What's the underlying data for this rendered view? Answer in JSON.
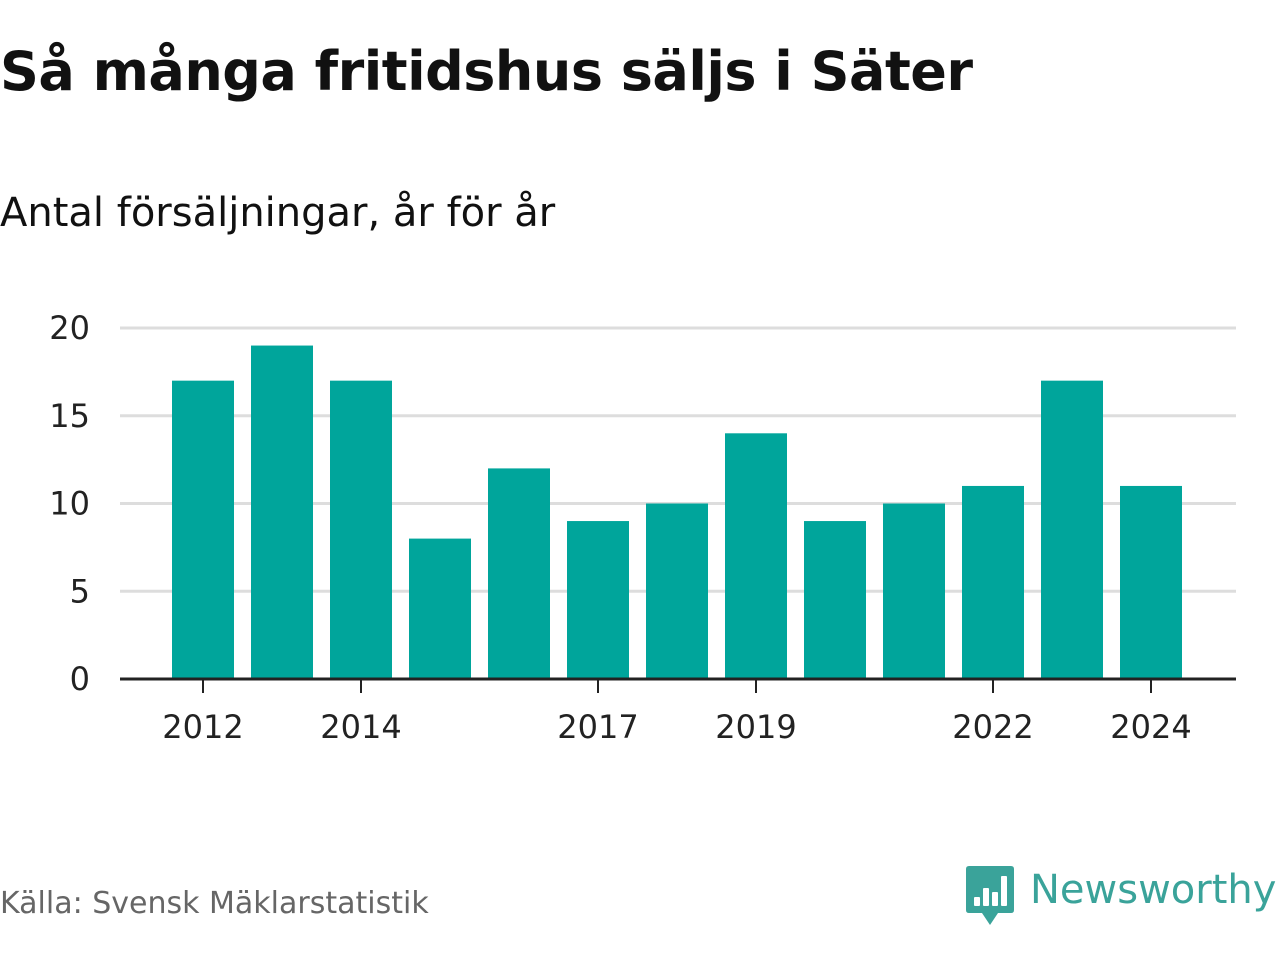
{
  "title": "Så många fritidshus säljs i Säter",
  "subtitle": "Antal försäljningar, år för år",
  "source": "Källa: Svensk Mäklarstatistik",
  "brand": {
    "name": "Newsworthy",
    "icon": "newsworthy-logo-icon",
    "color": "#3aa39a"
  },
  "chart_data": {
    "type": "bar",
    "title": "Så många fritidshus säljs i Säter",
    "subtitle": "Antal försäljningar, år för år",
    "xlabel": "",
    "ylabel": "",
    "categories": [
      "2012",
      "2013",
      "2014",
      "2015",
      "2016",
      "2017",
      "2018",
      "2019",
      "2020",
      "2021",
      "2022",
      "2023",
      "2024"
    ],
    "values": [
      17,
      19,
      17,
      8,
      12,
      9,
      10,
      14,
      9,
      10,
      11,
      17,
      11
    ],
    "x_tick_labels": [
      "2012",
      "2014",
      "2017",
      "2019",
      "2022",
      "2024"
    ],
    "y_ticks": [
      0,
      5,
      10,
      15,
      20
    ],
    "ylim": [
      0,
      20
    ],
    "grid": true,
    "bar_color": "#00a59b",
    "grid_color": "#dddddd",
    "axis_color": "#222222"
  }
}
